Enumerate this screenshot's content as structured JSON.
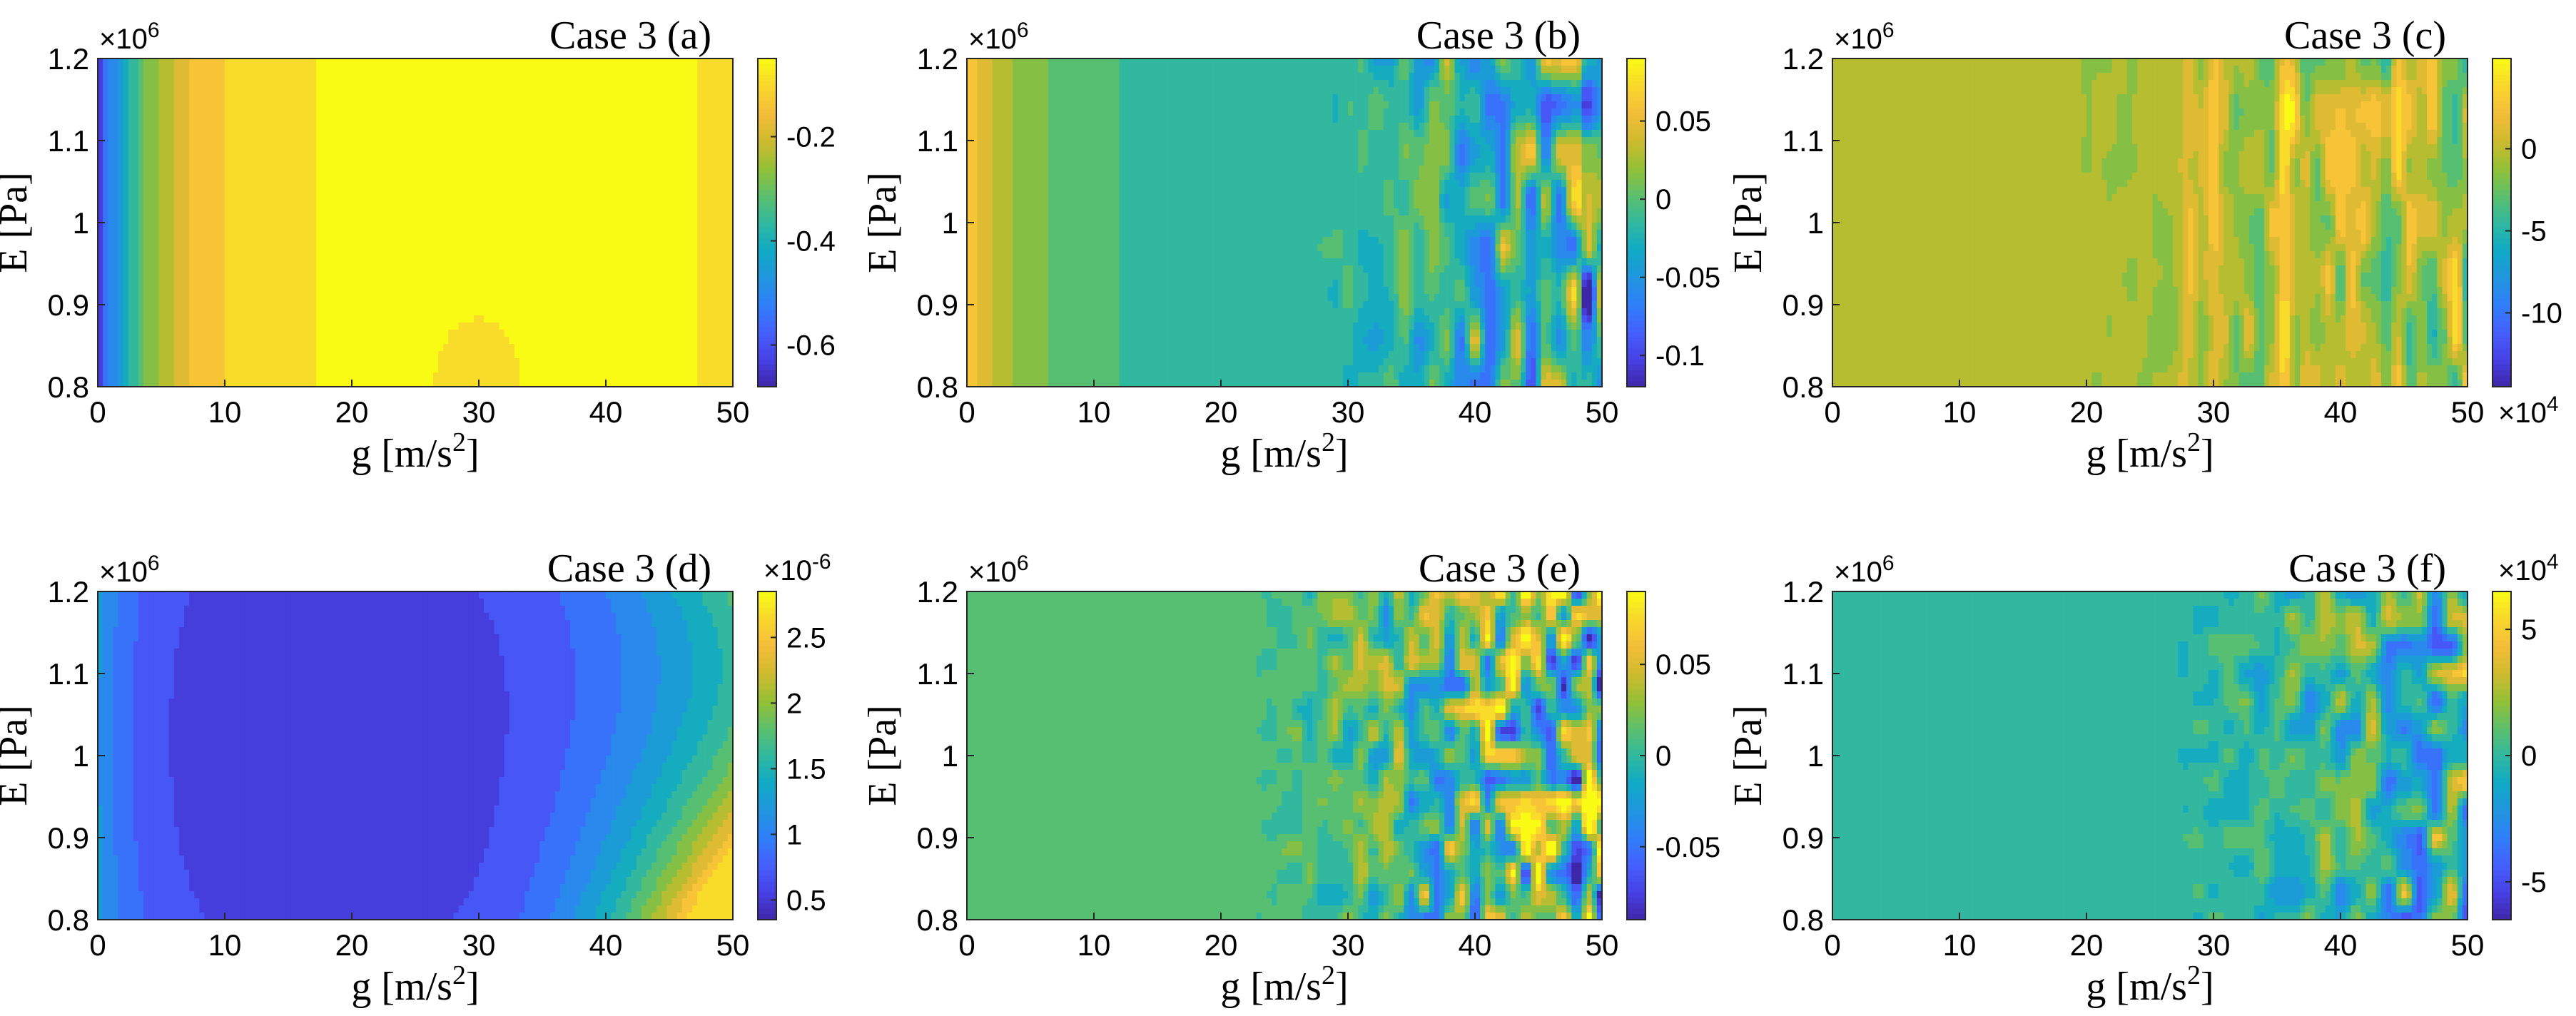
{
  "figure": {
    "colors": {
      "colormap": [
        "#3e26a8",
        "#4741e6",
        "#4560fd",
        "#2f7ff9",
        "#2196de",
        "#10aac5",
        "#31b89e",
        "#5dc06b",
        "#95c035",
        "#cfba2e",
        "#f5bd3a",
        "#f8d72c",
        "#f9fb15"
      ],
      "axis": "#262626"
    }
  },
  "chart_data": [
    {
      "id": "a",
      "type": "heatmap",
      "title": "Case 3 (a)",
      "xlabel": "g [m/s",
      "xlabel_sup": "2",
      "xlabel_suffix": "]",
      "ylabel": "E [Pa]",
      "xlim": [
        0,
        50
      ],
      "ylim": [
        0.8,
        1.2
      ],
      "x_ticks": [
        "0",
        "10",
        "20",
        "30",
        "40",
        "50"
      ],
      "y_ticks": [
        "0.8",
        "0.9",
        "1",
        "1.1",
        "1.2"
      ],
      "y_exponent": "×10",
      "y_exponent_power": "6",
      "colorbar": {
        "range": [
          -0.68,
          -0.05
        ],
        "ticks": [
          -0.6,
          -0.4,
          -0.2
        ],
        "tick_labels": [
          "-0.6",
          "-0.4",
          "-0.2"
        ],
        "exponent": "",
        "exponent_power": ""
      },
      "field": "a"
    },
    {
      "id": "b",
      "type": "heatmap",
      "title": "Case 3 (b)",
      "xlabel": "g [m/s",
      "xlabel_sup": "2",
      "xlabel_suffix": "]",
      "ylabel": "E [Pa]",
      "xlim": [
        0,
        50
      ],
      "ylim": [
        0.8,
        1.2
      ],
      "x_ticks": [
        "0",
        "10",
        "20",
        "30",
        "40",
        "50"
      ],
      "y_ticks": [
        "0.8",
        "0.9",
        "1",
        "1.1",
        "1.2"
      ],
      "y_exponent": "×10",
      "y_exponent_power": "6",
      "colorbar": {
        "range": [
          -0.12,
          0.09
        ],
        "ticks": [
          -0.1,
          -0.05,
          0,
          0.05
        ],
        "tick_labels": [
          "-0.1",
          "-0.05",
          "0",
          "0.05"
        ],
        "exponent": "",
        "exponent_power": ""
      },
      "field": "b"
    },
    {
      "id": "c",
      "type": "heatmap",
      "title": "Case 3 (c)",
      "xlabel": "g [m/s",
      "xlabel_sup": "2",
      "xlabel_suffix": "]",
      "ylabel": "E [Pa]",
      "xlim": [
        0,
        50
      ],
      "ylim": [
        0.8,
        1.2
      ],
      "x_ticks": [
        "0",
        "10",
        "20",
        "30",
        "40",
        "50"
      ],
      "y_ticks": [
        "0.8",
        "0.9",
        "1",
        "1.1",
        "1.2"
      ],
      "y_exponent": "×10",
      "y_exponent_power": "6",
      "colorbar": {
        "range": [
          -14.5,
          5.5
        ],
        "ticks": [
          -10,
          -5,
          0
        ],
        "tick_labels": [
          "-10",
          "-5",
          "0"
        ],
        "exponent": "×10",
        "exponent_power": "4",
        "exponent_position": "bottom"
      },
      "field": "c"
    },
    {
      "id": "d",
      "type": "heatmap",
      "title": "Case 3 (d)",
      "xlabel": "g [m/s",
      "xlabel_sup": "2",
      "xlabel_suffix": "]",
      "ylabel": "E [Pa]",
      "xlim": [
        0,
        50
      ],
      "ylim": [
        0.8,
        1.2
      ],
      "x_ticks": [
        "0",
        "10",
        "20",
        "30",
        "40",
        "50"
      ],
      "y_ticks": [
        "0.8",
        "0.9",
        "1",
        "1.1",
        "1.2"
      ],
      "y_exponent": "×10",
      "y_exponent_power": "6",
      "colorbar": {
        "range": [
          0.35,
          2.85
        ],
        "ticks": [
          0.5,
          1,
          1.5,
          2,
          2.5
        ],
        "tick_labels": [
          "0.5",
          "1",
          "1.5",
          "2",
          "2.5"
        ],
        "exponent": "×10",
        "exponent_power": "-6",
        "exponent_position": "top"
      },
      "field": "d"
    },
    {
      "id": "e",
      "type": "heatmap",
      "title": "Case 3 (e)",
      "xlabel": "g [m/s",
      "xlabel_sup": "2",
      "xlabel_suffix": "]",
      "ylabel": "E [Pa]",
      "xlim": [
        0,
        50
      ],
      "ylim": [
        0.8,
        1.2
      ],
      "x_ticks": [
        "0",
        "10",
        "20",
        "30",
        "40",
        "50"
      ],
      "y_ticks": [
        "0.8",
        "0.9",
        "1",
        "1.1",
        "1.2"
      ],
      "y_exponent": "×10",
      "y_exponent_power": "6",
      "colorbar": {
        "range": [
          -0.09,
          0.09
        ],
        "ticks": [
          -0.05,
          0,
          0.05
        ],
        "tick_labels": [
          "-0.05",
          "0",
          "0.05"
        ],
        "exponent": "",
        "exponent_power": ""
      },
      "field": "e"
    },
    {
      "id": "f",
      "type": "heatmap",
      "title": "Case 3 (f)",
      "xlabel": "g [m/s",
      "xlabel_sup": "2",
      "xlabel_suffix": "]",
      "ylabel": "E [Pa]",
      "xlim": [
        0,
        50
      ],
      "ylim": [
        0.8,
        1.2
      ],
      "x_ticks": [
        "0",
        "10",
        "20",
        "30",
        "40",
        "50"
      ],
      "y_ticks": [
        "0.8",
        "0.9",
        "1",
        "1.1",
        "1.2"
      ],
      "y_exponent": "×10",
      "y_exponent_power": "6",
      "colorbar": {
        "range": [
          -6.5,
          6.5
        ],
        "ticks": [
          -5,
          0,
          5
        ],
        "tick_labels": [
          "-5",
          "0",
          "5"
        ],
        "exponent": "×10",
        "exponent_power": "4",
        "exponent_position": "top"
      },
      "field": "f"
    }
  ]
}
